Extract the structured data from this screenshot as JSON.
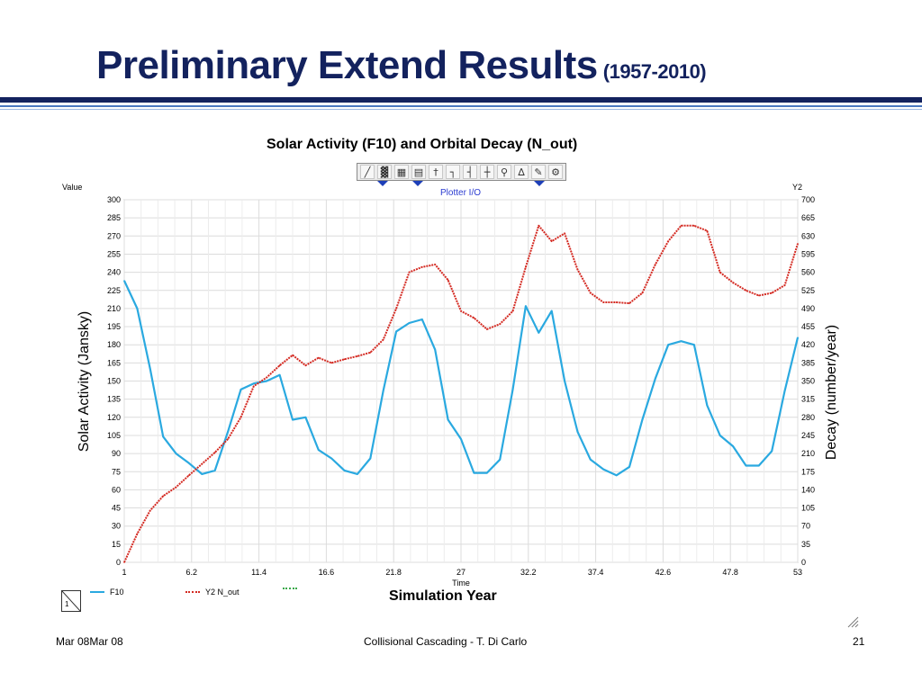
{
  "slide": {
    "title": "Preliminary Extend Results",
    "title_suffix": "(1957-2010)",
    "chart_caption": "Solar Activity (F10) and Orbital Decay (N_out)",
    "left_axis_title": "Solar Activity (Jansky)",
    "right_axis_title": "Decay (number/year)",
    "x_axis_caption": "Simulation Year",
    "footer": {
      "date": "Mar 08Mar 08",
      "center": "Collisional Cascading - T. Di Carlo",
      "page": "21"
    },
    "colors": {
      "title": "#13225e",
      "rule_dark": "#13225e",
      "rule_light": "#4a78c0"
    }
  },
  "plotter": {
    "name": "Plotter I/O",
    "y1_label": "Value",
    "y2_label": "Y2",
    "x_label": "Time",
    "corner_number": "1",
    "toolbar_icons": [
      "trace-icon",
      "chart-type-icon",
      "grid-icon",
      "table-icon",
      "pin-icon",
      "axis-icon",
      "axis-scale-icon",
      "crosshair-icon",
      "zoom-icon",
      "autoscale-icon",
      "pen-icon",
      "properties-icon"
    ]
  },
  "chart_data": {
    "type": "line",
    "title": "Solar Activity (F10) and Orbital Decay (N_out)",
    "xlabel": "Time",
    "ylabel": "Value",
    "y2label": "Y2",
    "xlim": [
      1,
      53
    ],
    "ylim": [
      0,
      300
    ],
    "y2lim": [
      0,
      700
    ],
    "x_ticks": [
      "1",
      "6.2",
      "11.4",
      "16.6",
      "21.8",
      "27",
      "32.2",
      "37.4",
      "42.6",
      "47.8",
      "53"
    ],
    "y_ticks": [
      "0",
      "15",
      "30",
      "45",
      "60",
      "75",
      "90",
      "105",
      "120",
      "135",
      "150",
      "165",
      "180",
      "195",
      "210",
      "225",
      "240",
      "255",
      "270",
      "285",
      "300"
    ],
    "y2_ticks": [
      "0",
      "35",
      "70",
      "105",
      "140",
      "175",
      "210",
      "245",
      "280",
      "315",
      "350",
      "385",
      "420",
      "455",
      "490",
      "525",
      "560",
      "595",
      "630",
      "665",
      "700"
    ],
    "grid": true,
    "legend": "bottom",
    "series": [
      {
        "name": "F10",
        "axis": "left",
        "color": "#2aa9e0",
        "x": [
          1,
          2,
          3,
          4,
          5,
          6,
          7,
          8,
          9,
          10,
          11,
          12,
          13,
          14,
          15,
          16,
          17,
          18,
          19,
          20,
          21,
          22,
          23,
          24,
          25,
          26,
          27,
          28,
          29,
          30,
          31,
          32,
          33,
          34,
          35,
          36,
          37,
          38,
          39,
          40,
          41,
          42,
          43,
          44,
          45,
          46,
          47,
          48,
          49,
          50,
          51,
          52,
          53
        ],
        "values": [
          233,
          210,
          160,
          104,
          90,
          82,
          73,
          76,
          108,
          143,
          148,
          150,
          155,
          118,
          120,
          93,
          86,
          76,
          73,
          86,
          142,
          191,
          198,
          201,
          176,
          118,
          102,
          74,
          74,
          85,
          143,
          212,
          190,
          208,
          150,
          108,
          85,
          77,
          72,
          79,
          118,
          152,
          180,
          183,
          180,
          130,
          105,
          96,
          80,
          80,
          92,
          142,
          186
        ]
      },
      {
        "name": "Y2 N_out",
        "axis": "right",
        "color": "#d42a22",
        "x": [
          1,
          2,
          3,
          4,
          5,
          6,
          7,
          8,
          9,
          10,
          11,
          12,
          13,
          14,
          15,
          16,
          17,
          18,
          19,
          20,
          21,
          22,
          23,
          24,
          25,
          26,
          27,
          28,
          29,
          30,
          31,
          32,
          33,
          34,
          35,
          36,
          37,
          38,
          39,
          40,
          41,
          42,
          43,
          44,
          45,
          46,
          47,
          48,
          49,
          50,
          51,
          52,
          53
        ],
        "values": [
          0,
          55,
          100,
          128,
          145,
          168,
          190,
          212,
          238,
          280,
          340,
          357,
          380,
          400,
          380,
          395,
          385,
          392,
          398,
          405,
          430,
          490,
          560,
          570,
          575,
          545,
          485,
          472,
          450,
          460,
          485,
          570,
          650,
          620,
          635,
          565,
          520,
          502,
          502,
          500,
          520,
          575,
          620,
          650,
          650,
          640,
          560,
          540,
          525,
          515,
          520,
          535,
          615
        ]
      }
    ]
  }
}
